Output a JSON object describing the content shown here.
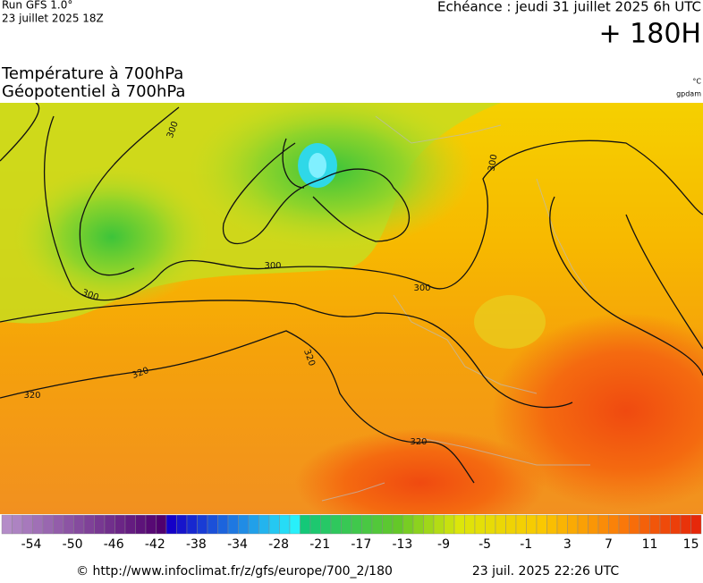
{
  "header": {
    "run": "Run GFS 1.0°",
    "run_date": "23 juillet 2025 18Z",
    "valid": "Echéance : jeudi 31 juillet 2025 6h UTC",
    "lead": "+ 180H"
  },
  "titles": {
    "temperature": "Température à 700hPa",
    "geopotential": "Géopotentiel à 700hPa",
    "unit_temperature": "°C",
    "unit_geopotential": "gpdam"
  },
  "contour_labels": [
    "300",
    "300",
    "300",
    "300",
    "300",
    "320",
    "320",
    "320",
    "320"
  ],
  "colorbar": {
    "ticks": [
      -54,
      -50,
      -46,
      -42,
      -38,
      -34,
      -28,
      -21,
      -17,
      -13,
      -9,
      -5,
      -1,
      3,
      7,
      11,
      15
    ]
  },
  "footer": {
    "source": "© http://www.infoclimat.fr/z/gfs/europe/700_2/180",
    "generated": "23 juil. 2025 22:26 UTC"
  }
}
